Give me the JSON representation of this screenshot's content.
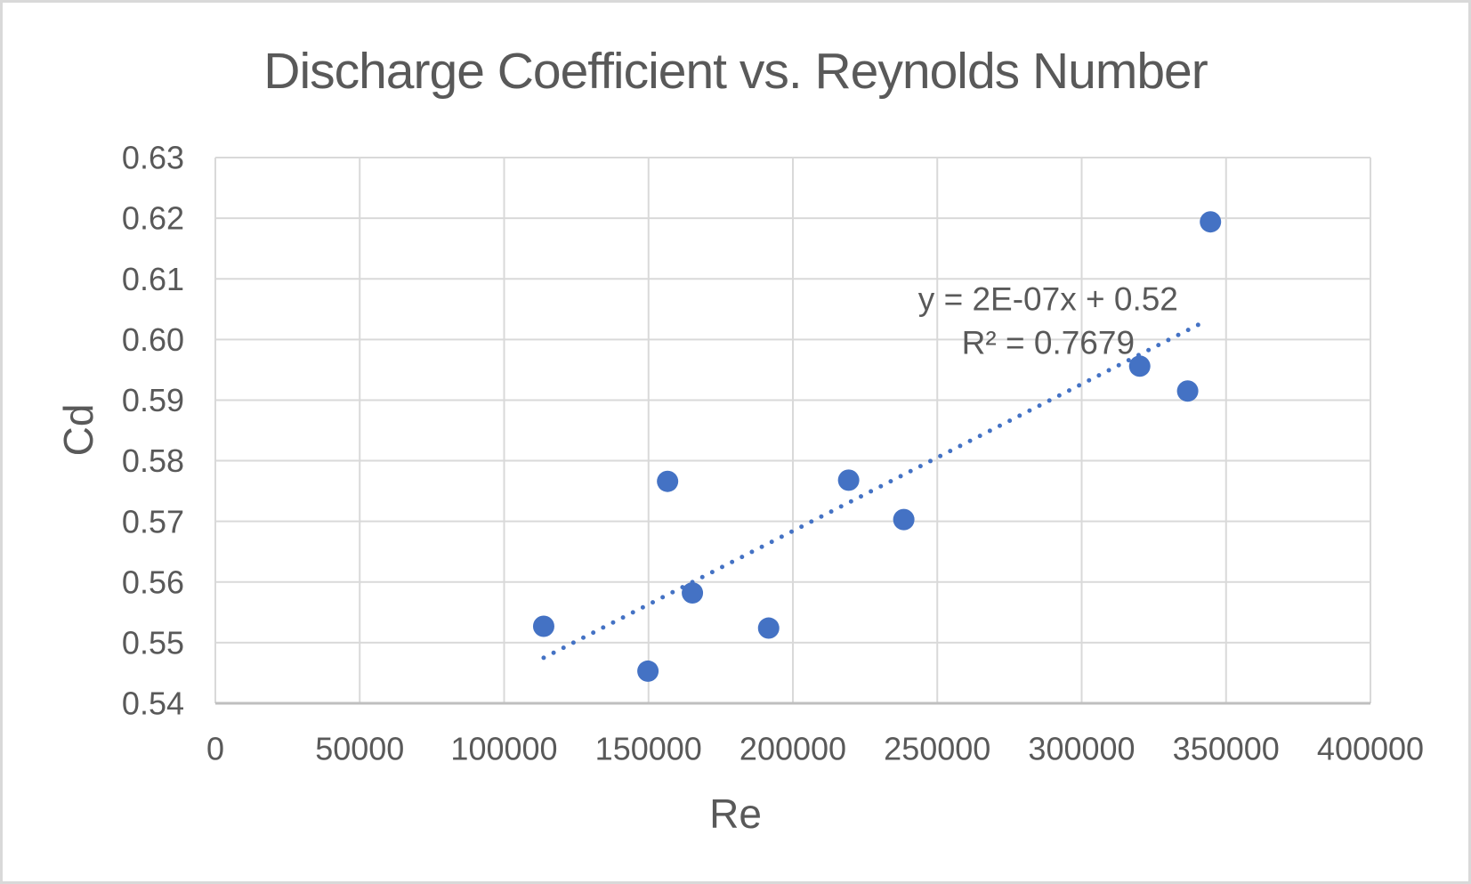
{
  "chart_data": {
    "type": "scatter",
    "title": "Discharge Coefficient vs. Reynolds Number",
    "xlabel": "Re",
    "ylabel": "Cd",
    "xlim": [
      0,
      400000
    ],
    "ylim": [
      0.54,
      0.63
    ],
    "x_ticks": [
      0,
      50000,
      100000,
      150000,
      200000,
      250000,
      300000,
      350000,
      400000
    ],
    "y_ticks": [
      0.54,
      0.55,
      0.56,
      0.57,
      0.58,
      0.59,
      0.6,
      0.61,
      0.62,
      0.63
    ],
    "grid": true,
    "legend": "none",
    "points": [
      {
        "x": 113700,
        "y": 0.5527
      },
      {
        "x": 149800,
        "y": 0.5453
      },
      {
        "x": 156600,
        "y": 0.5766
      },
      {
        "x": 165200,
        "y": 0.5582
      },
      {
        "x": 191600,
        "y": 0.5524
      },
      {
        "x": 219300,
        "y": 0.5768
      },
      {
        "x": 238400,
        "y": 0.5703
      },
      {
        "x": 320100,
        "y": 0.5956
      },
      {
        "x": 336700,
        "y": 0.5915
      },
      {
        "x": 344600,
        "y": 0.6194
      }
    ],
    "trendline": {
      "style": "dotted",
      "x1": 113700,
      "y1": 0.5475,
      "x2": 341100,
      "y2": 0.6026,
      "slope": 2e-07,
      "intercept": 0.52,
      "r_squared": 0.7679
    },
    "annotation": {
      "line1": "y = 2E-07x + 0.52",
      "line2": "R² = 0.7679",
      "x": 288400,
      "y_line1": 0.6067,
      "y_line2": 0.5995
    },
    "colors": {
      "marker": "#4472C4",
      "trendline": "#4472C4",
      "text": "#595959",
      "gridline": "#D9D9D9",
      "axis_line": "#BFBFBF",
      "background": "#FFFFFF",
      "border": "#D9D9D9"
    }
  }
}
